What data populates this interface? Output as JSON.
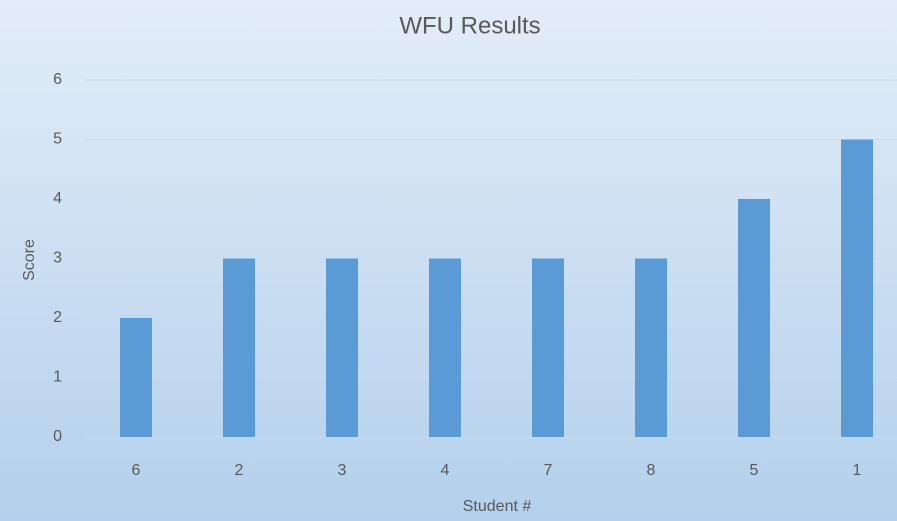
{
  "chart_data": {
    "type": "bar",
    "title": "WFU Results",
    "xlabel": "Student #",
    "ylabel": "Score",
    "categories": [
      "6",
      "2",
      "3",
      "4",
      "7",
      "8",
      "5",
      "1"
    ],
    "values": [
      2,
      3,
      3,
      3,
      3,
      3,
      4,
      5
    ],
    "color": "#5b9bd5",
    "ylim": [
      0,
      6
    ],
    "yticks": [
      0,
      1,
      2,
      3,
      4,
      5,
      6
    ],
    "grid": true
  }
}
